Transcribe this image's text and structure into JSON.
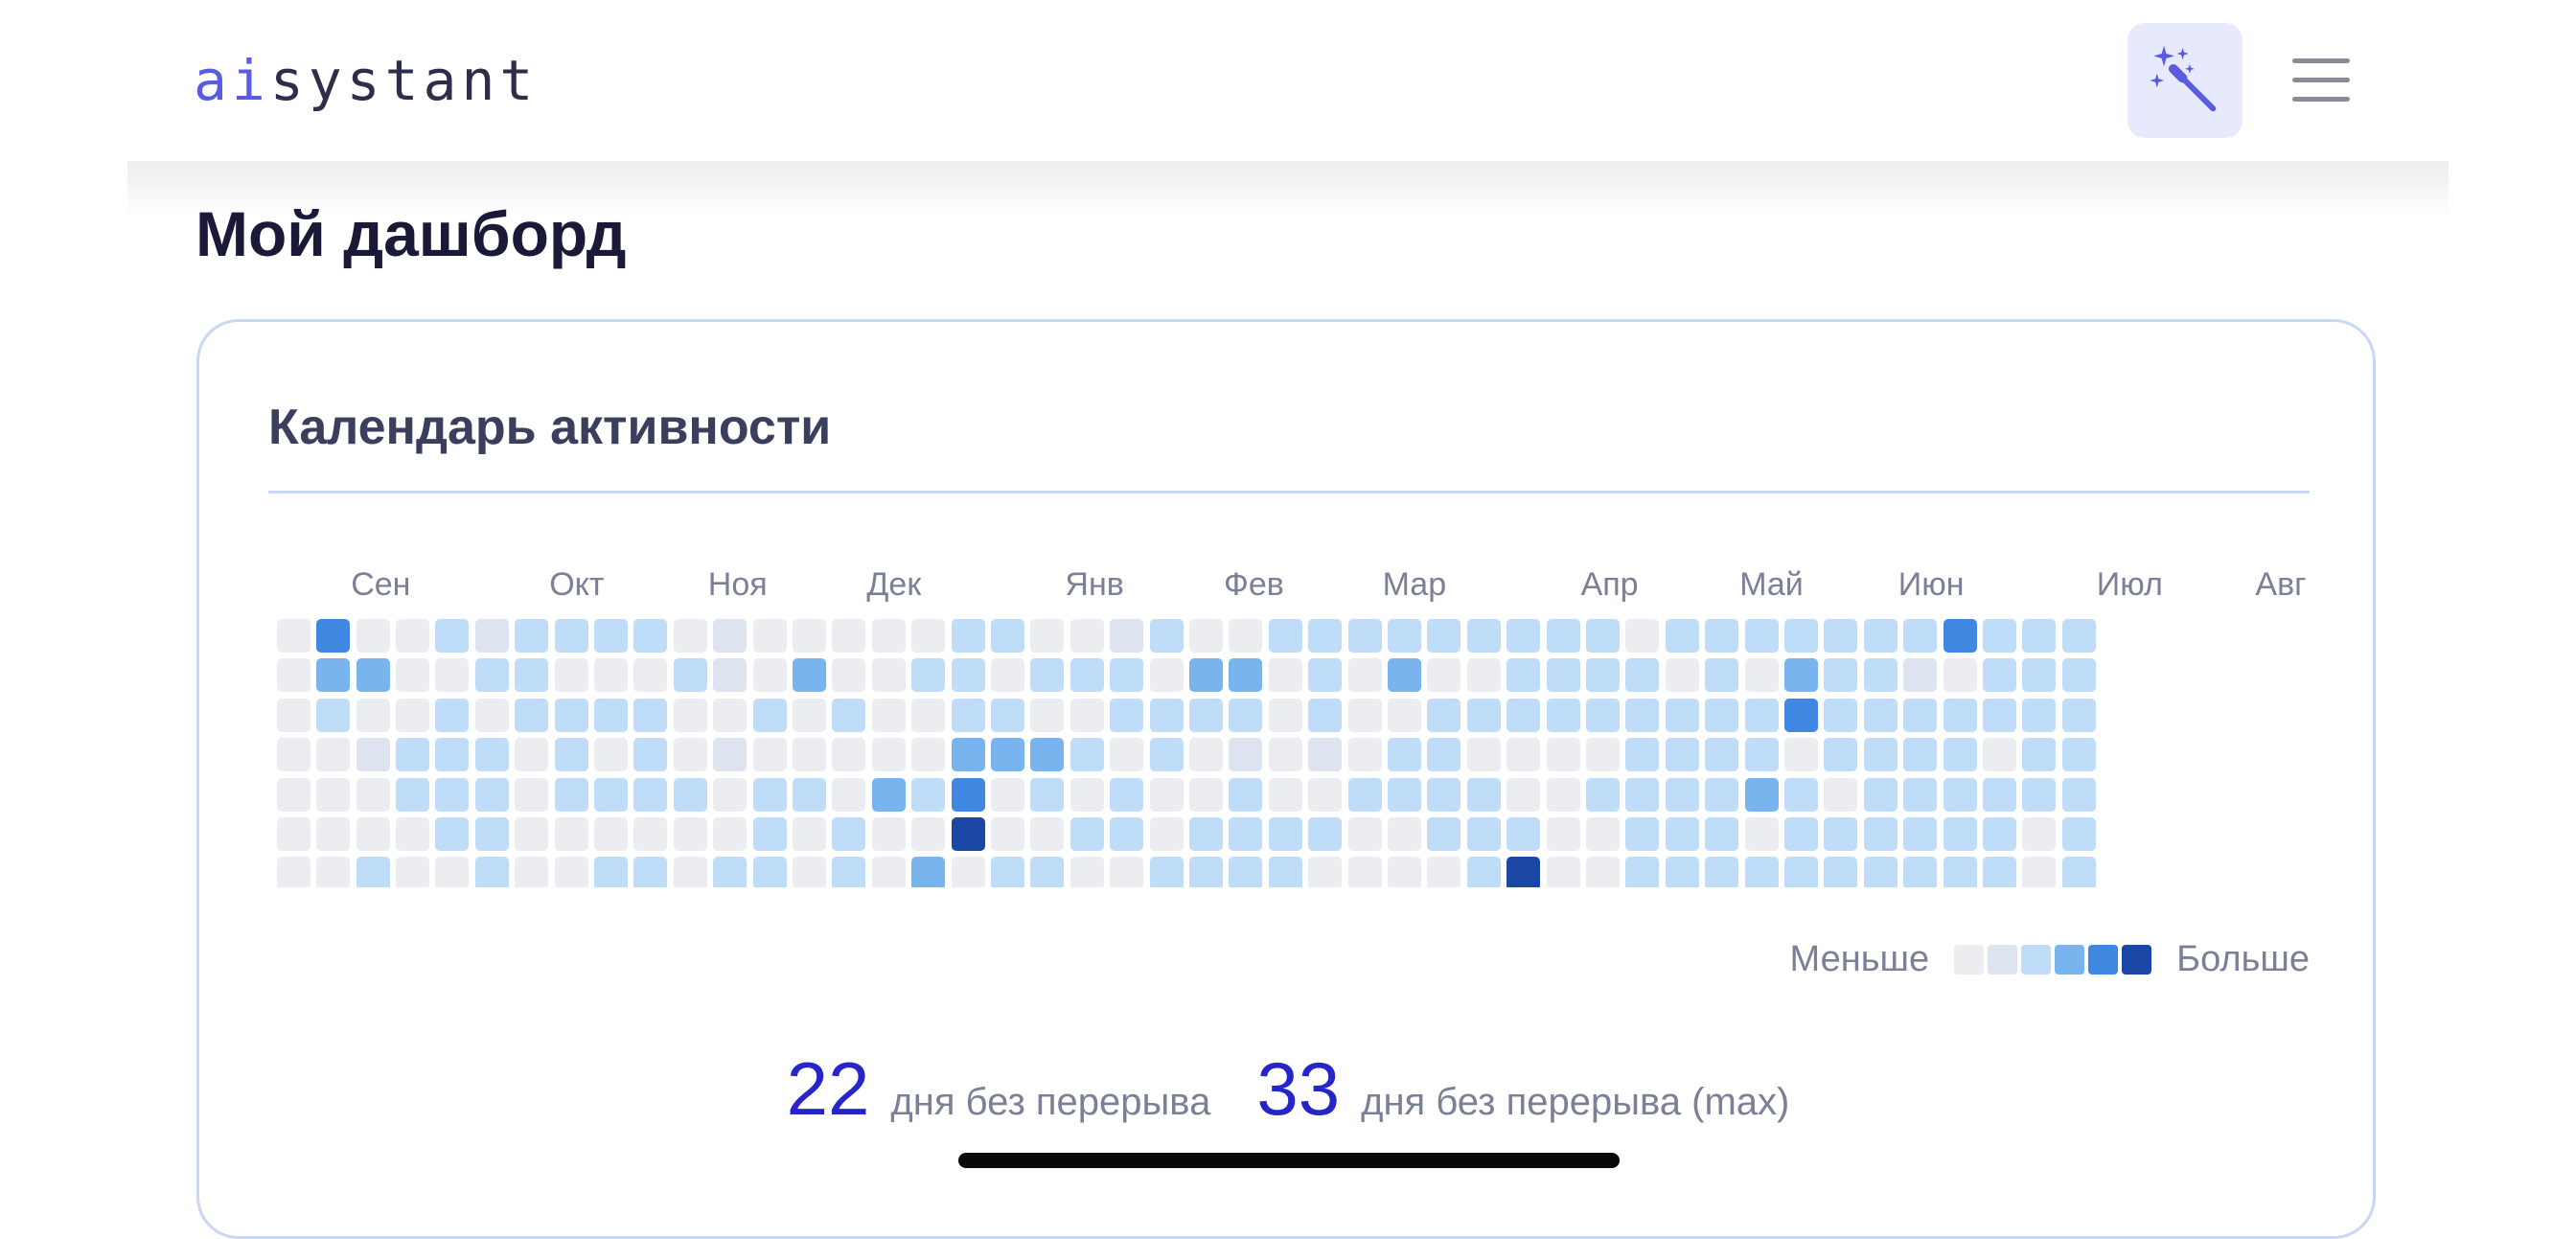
{
  "header": {
    "logo_prefix": "ai",
    "logo_suffix": "systant",
    "magic_button": {
      "icon": "magic-wand-icon",
      "color": "#5a5be0",
      "background": "#e6eafc"
    },
    "menu_button": {
      "icon": "hamburger-menu-icon",
      "color": "#8a8a9a"
    }
  },
  "page": {
    "title": "Мой дашборд"
  },
  "activity": {
    "title": "Календарь активности",
    "months": [
      "Сен",
      "Окт",
      "Ноя",
      "Дек",
      "Янв",
      "Фев",
      "Мар",
      "Апр",
      "Май",
      "Июн",
      "Июл",
      "Авг"
    ],
    "legend": {
      "less": "Меньше",
      "more": "Больше"
    },
    "level_colors": [
      "#ebedf0",
      "#dde3ef",
      "#bfdcf8",
      "#79b4ef",
      "#3f87e0",
      "#1a47a6"
    ],
    "grid_rows": [
      "0400212222010000022001200222222222022222224222",
      "0330022000210300220222033020300222202032210222",
      "0200202222002020022002222020022222222242222222",
      "0012220202010000033320201010220000222202222022",
      "0002220222202203240202002002222002222320222222",
      "0000220000002020050022022220022200222022222202",
      "0020020022022020302200222200002500222222222202"
    ]
  },
  "streaks": {
    "current_value": "22",
    "current_label": "дня без перерыва",
    "max_value": "33",
    "max_label": "дня без перерыва (max)"
  }
}
